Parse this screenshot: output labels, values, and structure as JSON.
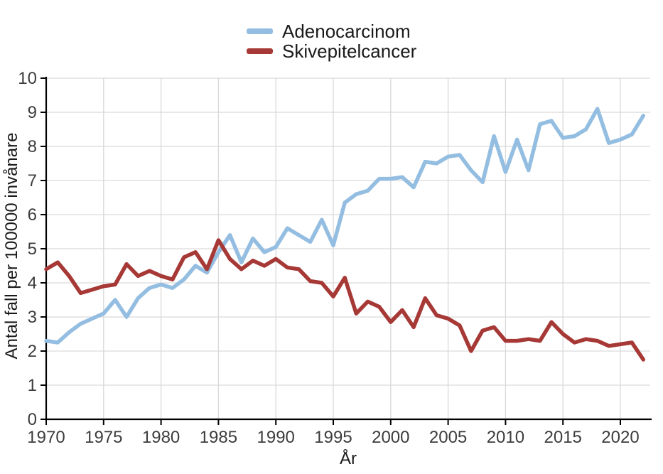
{
  "chart_data": {
    "type": "line",
    "title": "",
    "xlabel": "År",
    "ylabel": "Antal fall per 100000 invånare",
    "ylim": [
      0,
      10
    ],
    "xlim": [
      1970,
      2022.5
    ],
    "yticks": [
      0,
      1,
      2,
      3,
      4,
      5,
      6,
      7,
      8,
      9,
      10
    ],
    "xticks": [
      1970,
      1975,
      1980,
      1985,
      1990,
      1995,
      2000,
      2005,
      2010,
      2015,
      2020
    ],
    "grid": true,
    "legend_position": "top-center",
    "x": [
      1970,
      1971,
      1972,
      1973,
      1974,
      1975,
      1976,
      1977,
      1978,
      1979,
      1980,
      1981,
      1982,
      1983,
      1984,
      1985,
      1986,
      1987,
      1988,
      1989,
      1990,
      1991,
      1992,
      1993,
      1994,
      1995,
      1996,
      1997,
      1998,
      1999,
      2000,
      2001,
      2002,
      2003,
      2004,
      2005,
      2006,
      2007,
      2008,
      2009,
      2010,
      2011,
      2012,
      2013,
      2014,
      2015,
      2016,
      2017,
      2018,
      2019,
      2020,
      2021,
      2022
    ],
    "series": [
      {
        "name": "Adenocarcinom",
        "color": "#94BEE1",
        "values": [
          2.3,
          2.25,
          2.55,
          2.8,
          2.95,
          3.1,
          3.5,
          3.0,
          3.55,
          3.85,
          3.95,
          3.85,
          4.1,
          4.5,
          4.3,
          4.9,
          5.4,
          4.6,
          5.3,
          4.9,
          5.05,
          5.6,
          5.4,
          5.2,
          5.85,
          5.1,
          6.35,
          6.6,
          6.7,
          7.05,
          7.05,
          7.1,
          6.8,
          7.55,
          7.5,
          7.7,
          7.75,
          7.3,
          6.95,
          8.3,
          7.25,
          8.2,
          7.3,
          8.65,
          8.75,
          8.25,
          8.3,
          8.5,
          9.1,
          8.1,
          8.2,
          8.35,
          8.9
        ]
      },
      {
        "name": "Skivepitelcancer",
        "color": "#A63936",
        "values": [
          4.4,
          4.6,
          4.2,
          3.7,
          3.8,
          3.9,
          3.95,
          4.55,
          4.2,
          4.35,
          4.2,
          4.1,
          4.75,
          4.9,
          4.4,
          5.25,
          4.7,
          4.4,
          4.65,
          4.5,
          4.7,
          4.45,
          4.4,
          4.05,
          4.0,
          3.6,
          4.15,
          3.1,
          3.45,
          3.3,
          2.85,
          3.2,
          2.7,
          3.55,
          3.05,
          2.95,
          2.75,
          2.0,
          2.6,
          2.7,
          2.3,
          2.3,
          2.35,
          2.3,
          2.85,
          2.5,
          2.25,
          2.35,
          2.3,
          2.15,
          2.2,
          2.25,
          1.75
        ]
      }
    ],
    "colors": {
      "gridline": "#D9D9D9",
      "axis": "#000000",
      "tick_label": "#3d3d3d",
      "axis_title": "#1a1a1a"
    }
  }
}
